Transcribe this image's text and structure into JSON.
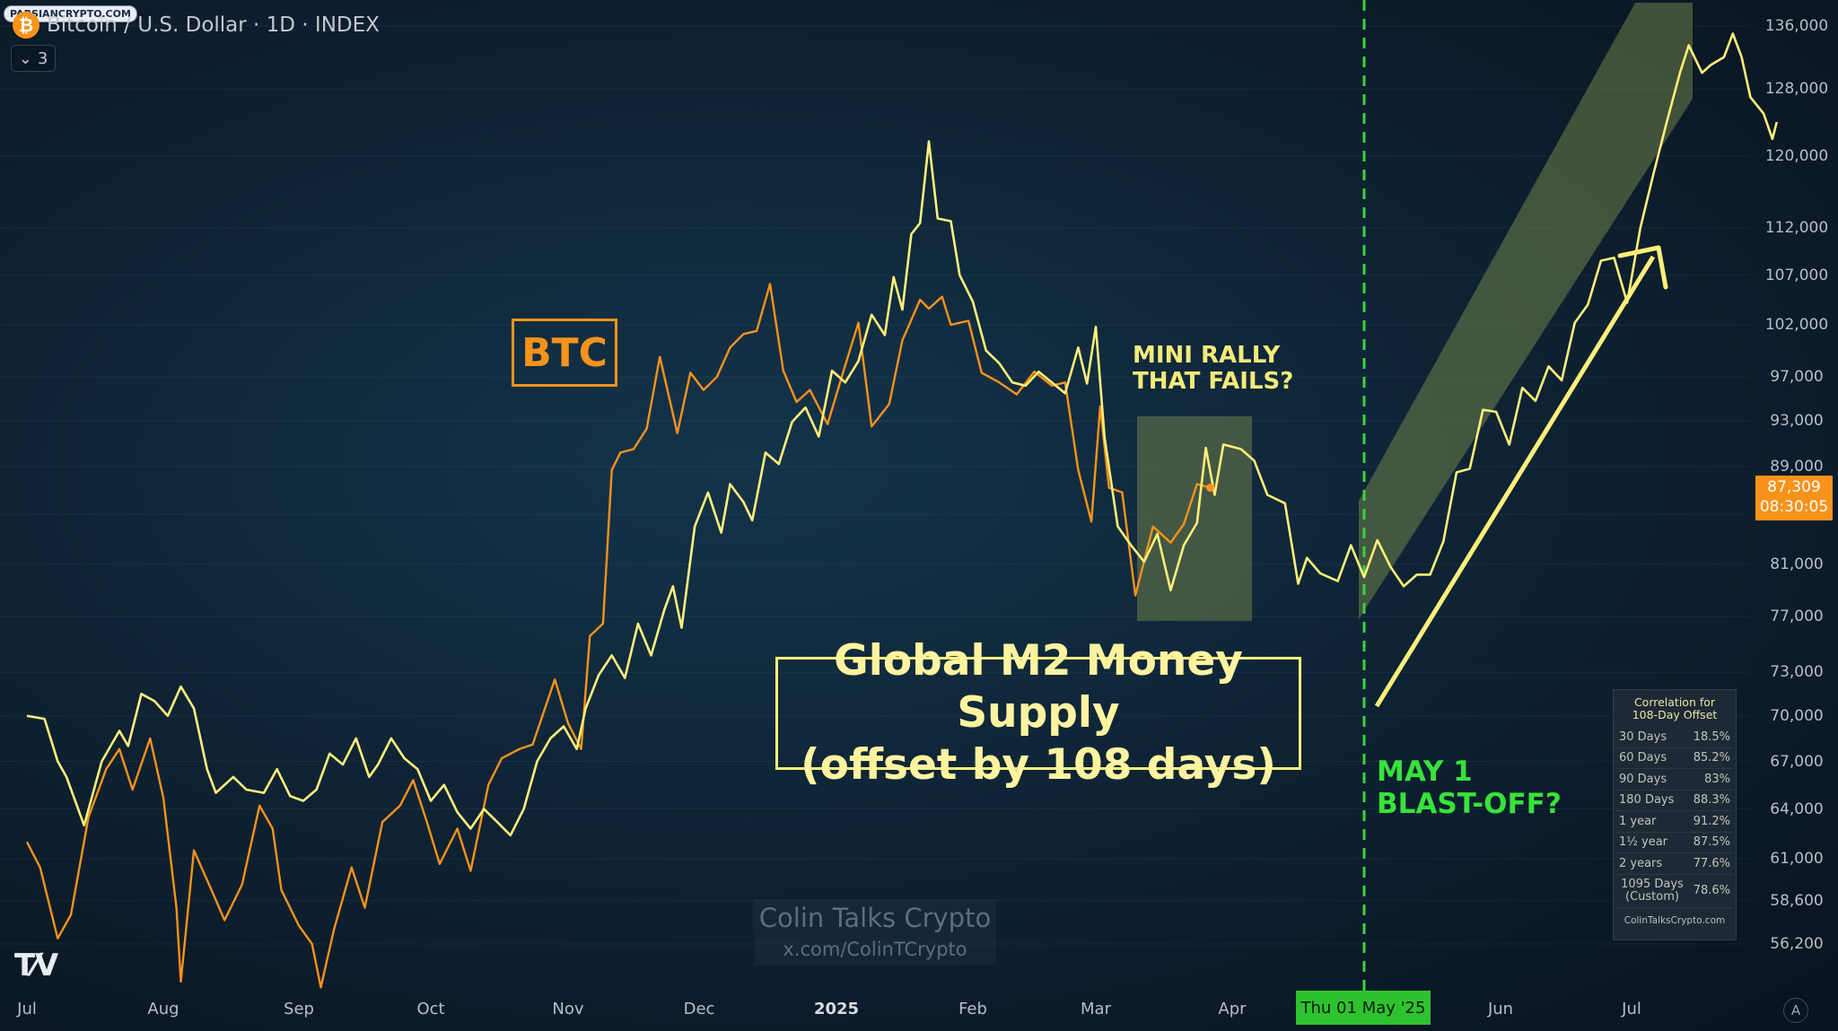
{
  "header": {
    "title": "Bitcoin / U.S. Dollar · 1D · INDEX",
    "indicator_count": "3",
    "site_badge": "PARSIANCRYPTO.COM"
  },
  "annotations": {
    "btc_label": "BTC",
    "m2_line1": "Global M2 Money Supply",
    "m2_line2": "(offset by 108 days)",
    "mini_line1": "MINI RALLY",
    "mini_line2": "THAT FAILS?",
    "blast_line1": "MAY 1",
    "blast_line2": "BLAST-OFF?"
  },
  "watermark": {
    "name": "Colin Talks Crypto",
    "handle": "x.com/ColinTCrypto"
  },
  "correlation_table": {
    "title_line1": "Correlation for",
    "title_line2": "108-Day Offset",
    "rows": [
      {
        "period": "30 Days",
        "value": "18.5%"
      },
      {
        "period": "60 Days",
        "value": "85.2%"
      },
      {
        "period": "90 Days",
        "value": "83%"
      },
      {
        "period": "180 Days",
        "value": "88.3%"
      },
      {
        "period": "1 year",
        "value": "91.2%"
      },
      {
        "period": "1½ year",
        "value": "87.5%"
      },
      {
        "period": "2 years",
        "value": "77.6%"
      }
    ],
    "custom_row": {
      "line1": "1095 Days",
      "line2": "(Custom)",
      "value": "78.6%"
    },
    "footer": "ColinTalksCrypto.com"
  },
  "price_flag": {
    "price": "87,309",
    "countdown": "08:30:05"
  },
  "date_flag": "Thu 01 May '25",
  "colors": {
    "btc": "#f7931a",
    "m2": "#ffef7a",
    "channel": "#7a8a4a",
    "may_line": "#3bd23b"
  },
  "chart_data": {
    "type": "line",
    "y_scale": "log",
    "y_ticks": [
      "136,000",
      "128,000",
      "120,000",
      "112,000",
      "107,000",
      "102,000",
      "97,000",
      "93,000",
      "89,000",
      "85,000",
      "81,000",
      "77,000",
      "73,000",
      "70,000",
      "67,000",
      "64,000",
      "61,000",
      "58,600",
      "56,200"
    ],
    "x_ticks": [
      "Jul",
      "Aug",
      "Sep",
      "Oct",
      "Nov",
      "Dec",
      "2025",
      "Feb",
      "Mar",
      "Apr",
      "Jun",
      "Jul"
    ],
    "series": [
      {
        "name": "BTC",
        "points": [
          [
            "2024-07-01",
            62000
          ],
          [
            "2024-07-04",
            60500
          ],
          [
            "2024-07-08",
            56500
          ],
          [
            "2024-07-11",
            57800
          ],
          [
            "2024-07-15",
            63500
          ],
          [
            "2024-07-19",
            66500
          ],
          [
            "2024-07-22",
            67800
          ],
          [
            "2024-07-25",
            65200
          ],
          [
            "2024-07-29",
            68500
          ],
          [
            "2024-08-01",
            64700
          ],
          [
            "2024-08-04",
            58200
          ],
          [
            "2024-08-05",
            54200
          ],
          [
            "2024-08-08",
            61500
          ],
          [
            "2024-08-12",
            59200
          ],
          [
            "2024-08-15",
            57500
          ],
          [
            "2024-08-19",
            59500
          ],
          [
            "2024-08-23",
            64200
          ],
          [
            "2024-08-26",
            62800
          ],
          [
            "2024-08-28",
            59200
          ],
          [
            "2024-09-01",
            57200
          ],
          [
            "2024-09-04",
            56200
          ],
          [
            "2024-09-06",
            53900
          ],
          [
            "2024-09-09",
            57000
          ],
          [
            "2024-09-13",
            60500
          ],
          [
            "2024-09-16",
            58200
          ],
          [
            "2024-09-20",
            63200
          ],
          [
            "2024-09-24",
            64200
          ],
          [
            "2024-09-27",
            65800
          ],
          [
            "2024-09-30",
            63300
          ],
          [
            "2024-10-03",
            60700
          ],
          [
            "2024-10-07",
            62800
          ],
          [
            "2024-10-10",
            60300
          ],
          [
            "2024-10-14",
            65500
          ],
          [
            "2024-10-17",
            67200
          ],
          [
            "2024-10-21",
            67800
          ],
          [
            "2024-10-24",
            68100
          ],
          [
            "2024-10-29",
            72500
          ],
          [
            "2024-11-01",
            69500
          ],
          [
            "2024-11-04",
            67800
          ],
          [
            "2024-11-06",
            75600
          ],
          [
            "2024-11-09",
            76500
          ],
          [
            "2024-11-11",
            88700
          ],
          [
            "2024-11-13",
            90200
          ],
          [
            "2024-11-16",
            90500
          ],
          [
            "2024-11-19",
            92300
          ],
          [
            "2024-11-22",
            98900
          ],
          [
            "2024-11-26",
            91900
          ],
          [
            "2024-11-29",
            97400
          ],
          [
            "2024-12-02",
            95800
          ],
          [
            "2024-12-05",
            97000
          ],
          [
            "2024-12-08",
            99800
          ],
          [
            "2024-12-11",
            101100
          ],
          [
            "2024-12-14",
            101400
          ],
          [
            "2024-12-17",
            106100
          ],
          [
            "2024-12-20",
            97600
          ],
          [
            "2024-12-23",
            94700
          ],
          [
            "2024-12-26",
            95800
          ],
          [
            "2024-12-30",
            92700
          ],
          [
            "2025-01-03",
            98100
          ],
          [
            "2025-01-06",
            102200
          ],
          [
            "2025-01-09",
            92500
          ],
          [
            "2025-01-13",
            94500
          ],
          [
            "2025-01-16",
            100500
          ],
          [
            "2025-01-20",
            104500
          ],
          [
            "2025-01-22",
            103600
          ],
          [
            "2025-01-25",
            104800
          ],
          [
            "2025-01-27",
            102000
          ],
          [
            "2025-01-31",
            102400
          ],
          [
            "2025-02-03",
            97400
          ],
          [
            "2025-02-07",
            96500
          ],
          [
            "2025-02-11",
            95400
          ],
          [
            "2025-02-15",
            97500
          ],
          [
            "2025-02-19",
            96200
          ],
          [
            "2025-02-22",
            96500
          ],
          [
            "2025-02-25",
            88700
          ],
          [
            "2025-02-28",
            84400
          ],
          [
            "2025-03-02",
            94300
          ],
          [
            "2025-03-04",
            87200
          ],
          [
            "2025-03-07",
            86800
          ],
          [
            "2025-03-10",
            78600
          ],
          [
            "2025-03-14",
            84000
          ],
          [
            "2025-03-18",
            82700
          ],
          [
            "2025-03-21",
            84200
          ],
          [
            "2025-03-24",
            87500
          ],
          [
            "2025-03-27",
            87200
          ]
        ]
      },
      {
        "name": "Global M2 Money Supply (offset by 108 days)",
        "points": [
          [
            "2024-07-01",
            70000
          ],
          [
            "2024-07-05",
            69800
          ],
          [
            "2024-07-08",
            67000
          ],
          [
            "2024-07-10",
            66000
          ],
          [
            "2024-07-14",
            63000
          ],
          [
            "2024-07-18",
            67000
          ],
          [
            "2024-07-22",
            69000
          ],
          [
            "2024-07-24",
            68000
          ],
          [
            "2024-07-27",
            71500
          ],
          [
            "2024-07-30",
            71000
          ],
          [
            "2024-08-02",
            70000
          ],
          [
            "2024-08-05",
            72000
          ],
          [
            "2024-08-08",
            70500
          ],
          [
            "2024-08-11",
            66500
          ],
          [
            "2024-08-13",
            65000
          ],
          [
            "2024-08-17",
            66000
          ],
          [
            "2024-08-20",
            65200
          ],
          [
            "2024-08-24",
            65000
          ],
          [
            "2024-08-27",
            66500
          ],
          [
            "2024-08-30",
            64800
          ],
          [
            "2024-09-02",
            64500
          ],
          [
            "2024-09-05",
            65200
          ],
          [
            "2024-09-08",
            67500
          ],
          [
            "2024-09-11",
            66800
          ],
          [
            "2024-09-14",
            68500
          ],
          [
            "2024-09-17",
            66000
          ],
          [
            "2024-09-19",
            66800
          ],
          [
            "2024-09-22",
            68500
          ],
          [
            "2024-09-25",
            67200
          ],
          [
            "2024-09-28",
            66500
          ],
          [
            "2024-10-01",
            64500
          ],
          [
            "2024-10-04",
            65500
          ],
          [
            "2024-10-07",
            63800
          ],
          [
            "2024-10-10",
            62800
          ],
          [
            "2024-10-13",
            64000
          ],
          [
            "2024-10-16",
            63200
          ],
          [
            "2024-10-19",
            62400
          ],
          [
            "2024-10-22",
            64000
          ],
          [
            "2024-10-25",
            67000
          ],
          [
            "2024-10-28",
            68500
          ],
          [
            "2024-10-31",
            69300
          ],
          [
            "2024-11-03",
            67800
          ],
          [
            "2024-11-05",
            70500
          ],
          [
            "2024-11-08",
            72800
          ],
          [
            "2024-11-11",
            74200
          ],
          [
            "2024-11-14",
            72600
          ],
          [
            "2024-11-17",
            76500
          ],
          [
            "2024-11-20",
            74200
          ],
          [
            "2024-11-23",
            77500
          ],
          [
            "2024-11-25",
            79300
          ],
          [
            "2024-11-27",
            76200
          ],
          [
            "2024-11-30",
            84000
          ],
          [
            "2024-12-03",
            86800
          ],
          [
            "2024-12-06",
            83500
          ],
          [
            "2024-12-08",
            87500
          ],
          [
            "2024-12-11",
            86000
          ],
          [
            "2024-12-13",
            84500
          ],
          [
            "2024-12-16",
            90200
          ],
          [
            "2024-12-19",
            89200
          ],
          [
            "2024-12-22",
            92900
          ],
          [
            "2024-12-25",
            94200
          ],
          [
            "2024-12-28",
            91600
          ],
          [
            "2024-12-31",
            97600
          ],
          [
            "2025-01-03",
            96500
          ],
          [
            "2025-01-06",
            98500
          ],
          [
            "2025-01-09",
            103000
          ],
          [
            "2025-01-12",
            101000
          ],
          [
            "2025-01-14",
            106800
          ],
          [
            "2025-01-16",
            103500
          ],
          [
            "2025-01-18",
            111300
          ],
          [
            "2025-01-20",
            112500
          ],
          [
            "2025-01-22",
            121700
          ],
          [
            "2025-01-24",
            113000
          ],
          [
            "2025-01-27",
            112700
          ],
          [
            "2025-01-29",
            107000
          ],
          [
            "2025-02-01",
            104300
          ],
          [
            "2025-02-04",
            99500
          ],
          [
            "2025-02-07",
            98300
          ],
          [
            "2025-02-10",
            96500
          ],
          [
            "2025-02-13",
            96200
          ],
          [
            "2025-02-16",
            97500
          ],
          [
            "2025-02-19",
            96500
          ],
          [
            "2025-02-22",
            95500
          ],
          [
            "2025-02-25",
            99800
          ],
          [
            "2025-02-27",
            96400
          ],
          [
            "2025-03-01",
            101800
          ],
          [
            "2025-03-03",
            91500
          ],
          [
            "2025-03-06",
            84000
          ],
          [
            "2025-03-09",
            82500
          ],
          [
            "2025-03-12",
            81200
          ],
          [
            "2025-03-15",
            83400
          ],
          [
            "2025-03-18",
            79000
          ],
          [
            "2025-03-21",
            82500
          ],
          [
            "2025-03-24",
            84300
          ],
          [
            "2025-03-26",
            90600
          ],
          [
            "2025-03-28",
            86600
          ],
          [
            "2025-03-30",
            90900
          ],
          [
            "2025-04-03",
            90500
          ],
          [
            "2025-04-06",
            89500
          ],
          [
            "2025-04-09",
            86600
          ],
          [
            "2025-04-13",
            85900
          ],
          [
            "2025-04-16",
            79500
          ],
          [
            "2025-04-18",
            81500
          ],
          [
            "2025-04-21",
            80300
          ],
          [
            "2025-04-25",
            79700
          ],
          [
            "2025-04-28",
            82500
          ],
          [
            "2025-05-01",
            80000
          ],
          [
            "2025-05-04",
            82900
          ],
          [
            "2025-05-07",
            80800
          ],
          [
            "2025-05-10",
            79300
          ],
          [
            "2025-05-13",
            80200
          ],
          [
            "2025-05-16",
            80200
          ],
          [
            "2025-05-19",
            82800
          ],
          [
            "2025-05-22",
            88500
          ],
          [
            "2025-05-25",
            88800
          ],
          [
            "2025-05-28",
            94000
          ],
          [
            "2025-05-31",
            93800
          ],
          [
            "2025-06-03",
            90900
          ],
          [
            "2025-06-06",
            96000
          ],
          [
            "2025-06-09",
            94800
          ],
          [
            "2025-06-12",
            98000
          ],
          [
            "2025-06-15",
            96700
          ],
          [
            "2025-06-18",
            102200
          ],
          [
            "2025-06-21",
            104000
          ],
          [
            "2025-06-24",
            108500
          ],
          [
            "2025-06-27",
            108800
          ],
          [
            "2025-06-30",
            104200
          ],
          [
            "2025-07-03",
            112000
          ],
          [
            "2025-07-06",
            118000
          ],
          [
            "2025-07-09",
            124000
          ],
          [
            "2025-07-12",
            130000
          ],
          [
            "2025-07-14",
            133500
          ],
          [
            "2025-07-17",
            130000
          ],
          [
            "2025-07-19",
            131000
          ],
          [
            "2025-07-22",
            132000
          ],
          [
            "2025-07-24",
            135000
          ],
          [
            "2025-07-26",
            132000
          ],
          [
            "2025-07-28",
            127000
          ],
          [
            "2025-07-31",
            125000
          ],
          [
            "2025-08-02",
            122000
          ],
          [
            "2025-08-03",
            124000
          ]
        ]
      }
    ],
    "legend": "none",
    "grid": "horizontal"
  }
}
